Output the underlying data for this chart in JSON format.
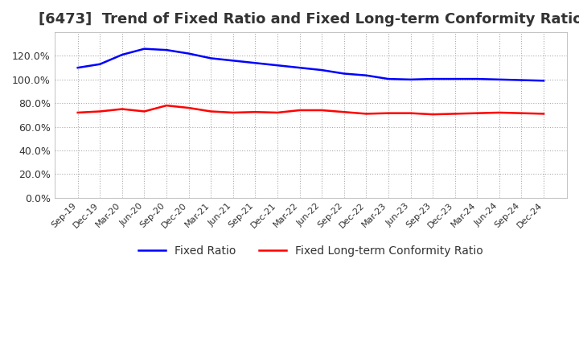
{
  "title": "[6473]  Trend of Fixed Ratio and Fixed Long-term Conformity Ratio",
  "x_labels": [
    "Sep-19",
    "Dec-19",
    "Mar-20",
    "Jun-20",
    "Sep-20",
    "Dec-20",
    "Mar-21",
    "Jun-21",
    "Sep-21",
    "Dec-21",
    "Mar-22",
    "Jun-22",
    "Sep-22",
    "Dec-22",
    "Mar-23",
    "Jun-23",
    "Sep-23",
    "Dec-23",
    "Mar-24",
    "Jun-24",
    "Sep-24",
    "Dec-24"
  ],
  "fixed_ratio": [
    110.0,
    113.0,
    121.0,
    126.0,
    125.0,
    122.0,
    118.0,
    116.0,
    114.0,
    112.0,
    110.0,
    108.0,
    105.0,
    103.5,
    100.5,
    100.0,
    100.5,
    100.5,
    100.5,
    100.0,
    99.5,
    99.0
  ],
  "fixed_lt_ratio": [
    72.0,
    73.0,
    75.0,
    73.0,
    78.0,
    76.0,
    73.0,
    72.0,
    72.5,
    72.0,
    74.0,
    74.0,
    72.5,
    71.0,
    71.5,
    71.5,
    70.5,
    71.0,
    71.5,
    72.0,
    71.5,
    71.0
  ],
  "fixed_ratio_color": "#0000FF",
  "fixed_lt_ratio_color": "#FF0000",
  "ylim": [
    0,
    140
  ],
  "yticks": [
    0,
    20,
    40,
    60,
    80,
    100,
    120
  ],
  "background_color": "#FFFFFF",
  "plot_bg_color": "#FFFFFF",
  "grid_color": "#AAAAAA",
  "title_fontsize": 13,
  "legend_fontsize": 10
}
